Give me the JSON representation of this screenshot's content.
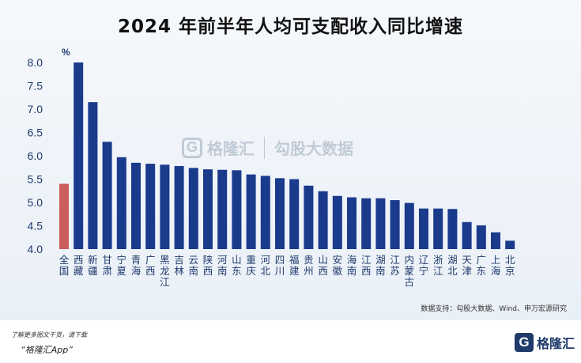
{
  "title": "2024 年前半年人均可支配收入同比增速",
  "watermark": {
    "logo_letter": "G",
    "brand": "格隆汇",
    "brand2": "勾股大数据"
  },
  "source": "数据支持：勾股大数据、Wind、申万宏源研究",
  "footer": {
    "line1": "了解更多图文干货，请下载",
    "line2": "“格隆汇App”"
  },
  "brand": {
    "logo_letter": "G",
    "name": "格隆汇"
  },
  "colors": {
    "bar": "#1a3a8c",
    "highlight": "#cd5c5c",
    "text": "#1f3a6b"
  },
  "chart_data": {
    "type": "bar",
    "ylabel": "%",
    "ylim": [
      4.0,
      8.0
    ],
    "yticks": [
      "4.0",
      "4.5",
      "5.0",
      "5.5",
      "6.0",
      "6.5",
      "7.0",
      "7.5",
      "8.0"
    ],
    "highlight_index": 0,
    "categories": [
      "全国",
      "西藏",
      "新疆",
      "甘肃",
      "宁夏",
      "青海",
      "广西",
      "黑龙江",
      "吉林",
      "云南",
      "陕西",
      "河南",
      "山东",
      "重庆",
      "河北",
      "四川",
      "福建",
      "贵州",
      "山西",
      "安徽",
      "海南",
      "江西",
      "湖南",
      "江苏",
      "内蒙古",
      "辽宁",
      "浙江",
      "湖北",
      "天津",
      "广东",
      "上海",
      "北京"
    ],
    "values": [
      5.4,
      8.0,
      7.15,
      6.3,
      5.97,
      5.85,
      5.83,
      5.81,
      5.78,
      5.74,
      5.71,
      5.7,
      5.69,
      5.6,
      5.57,
      5.52,
      5.5,
      5.36,
      5.24,
      5.14,
      5.11,
      5.09,
      5.09,
      5.05,
      4.99,
      4.87,
      4.87,
      4.86,
      4.58,
      4.51,
      4.36,
      4.18
    ]
  }
}
